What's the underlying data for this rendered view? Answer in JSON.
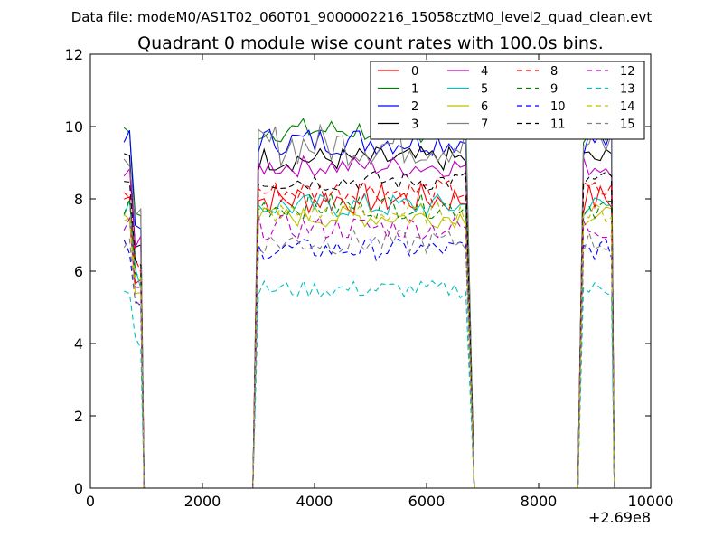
{
  "figure": {
    "suptitle": "Data file: modeM0/AS1T02_060T01_9000002216_15058cztM0_level2_quad_clean.evt",
    "offset_label": "+2.69e8"
  },
  "chart_data": {
    "type": "line",
    "title": "Quadrant 0 module wise count rates with 100.0s bins.",
    "xlabel": "",
    "ylabel": "",
    "xlim": [
      0,
      10000
    ],
    "ylim": [
      0,
      12
    ],
    "xticks": [
      0,
      2000,
      4000,
      6000,
      8000,
      10000
    ],
    "yticks": [
      0,
      2,
      4,
      6,
      8,
      10,
      12
    ],
    "x_offset": 269000000,
    "grid": false,
    "legend_location": "upper-right",
    "legend_columns": 4,
    "segments": [
      {
        "start": 600,
        "end": 900,
        "ramp_down_to": 960
      },
      {
        "start": 3000,
        "end": 6750,
        "ramp_down_to": 6850
      },
      {
        "start": 8800,
        "end": 9350,
        "ramp_down_to": 9350
      }
    ],
    "series": [
      {
        "name": "0",
        "color": "#ff0000",
        "dash": "solid",
        "mean": 8.0,
        "amp": 0.45
      },
      {
        "name": "1",
        "color": "#008000",
        "dash": "solid",
        "mean": 9.9,
        "amp": 0.35
      },
      {
        "name": "2",
        "color": "#0000ff",
        "dash": "solid",
        "mean": 9.6,
        "amp": 0.4
      },
      {
        "name": "3",
        "color": "#000000",
        "dash": "solid",
        "mean": 9.1,
        "amp": 0.35
      },
      {
        "name": "4",
        "color": "#bf00bf",
        "dash": "solid",
        "mean": 8.9,
        "amp": 0.3
      },
      {
        "name": "5",
        "color": "#00bfbf",
        "dash": "solid",
        "mean": 7.8,
        "amp": 0.35
      },
      {
        "name": "6",
        "color": "#bfbf00",
        "dash": "solid",
        "mean": 7.5,
        "amp": 0.3
      },
      {
        "name": "7",
        "color": "#808080",
        "dash": "solid",
        "mean": 9.5,
        "amp": 0.6
      },
      {
        "name": "8",
        "color": "#ff0000",
        "dash": "dashed",
        "mean": 8.2,
        "amp": 0.35
      },
      {
        "name": "9",
        "color": "#008000",
        "dash": "dashed",
        "mean": 7.8,
        "amp": 0.35
      },
      {
        "name": "10",
        "color": "#0000ff",
        "dash": "dashed",
        "mean": 6.6,
        "amp": 0.3
      },
      {
        "name": "11",
        "color": "#000000",
        "dash": "dashed",
        "mean": 8.5,
        "amp": 0.3
      },
      {
        "name": "12",
        "color": "#bf00bf",
        "dash": "dashed",
        "mean": 7.2,
        "amp": 0.35
      },
      {
        "name": "13",
        "color": "#00bfbf",
        "dash": "dashed",
        "mean": 5.5,
        "amp": 0.25
      },
      {
        "name": "14",
        "color": "#bfbf00",
        "dash": "dashed",
        "mean": 7.6,
        "amp": 0.3
      },
      {
        "name": "15",
        "color": "#808080",
        "dash": "dashed",
        "mean": 6.8,
        "amp": 0.35
      }
    ]
  }
}
